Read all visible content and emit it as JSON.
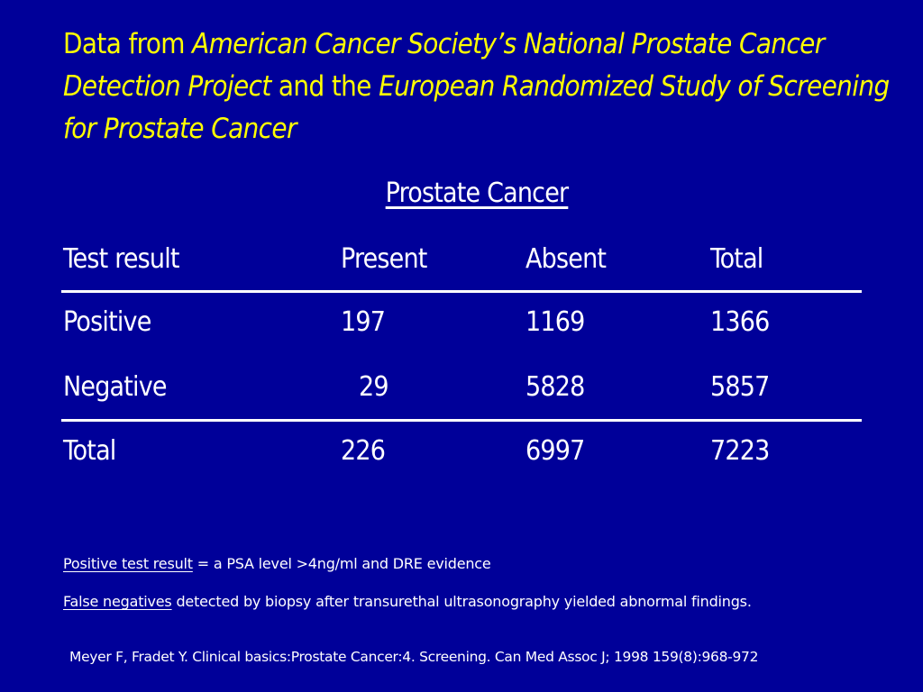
{
  "slide": {
    "background_color": "#000099",
    "title_color": "#ffff00",
    "text_color": "#ffffff",
    "title": {
      "part1": "Data from ",
      "part2_italic": "American Cancer Society’s National Prostate Cancer Detection Project",
      "part3": " and the ",
      "part4_italic": "European Randomized Study of Screening for Prostate Cancer"
    },
    "table": {
      "caption": "Prostate Cancer",
      "headers": [
        "Test result",
        "Present",
        "Absent",
        "Total"
      ],
      "rows": [
        [
          "Positive",
          "197",
          "1169",
          "1366"
        ],
        [
          "Negative",
          "29",
          "5828",
          "5857"
        ]
      ],
      "total_row": [
        "Total",
        "226",
        "6997",
        "7223"
      ]
    },
    "notes": [
      {
        "term": "Positive test result",
        "text": " = a PSA level >4ng/ml and DRE evidence"
      },
      {
        "term": "False negatives",
        "text": " detected by biopsy after transurethal ultrasonography yielded abnormal findings."
      }
    ],
    "citation": "Meyer F, Fradet Y. Clinical basics:Prostate Cancer:4. Screening. Can Med Assoc J; 1998 159(8):968-972"
  }
}
